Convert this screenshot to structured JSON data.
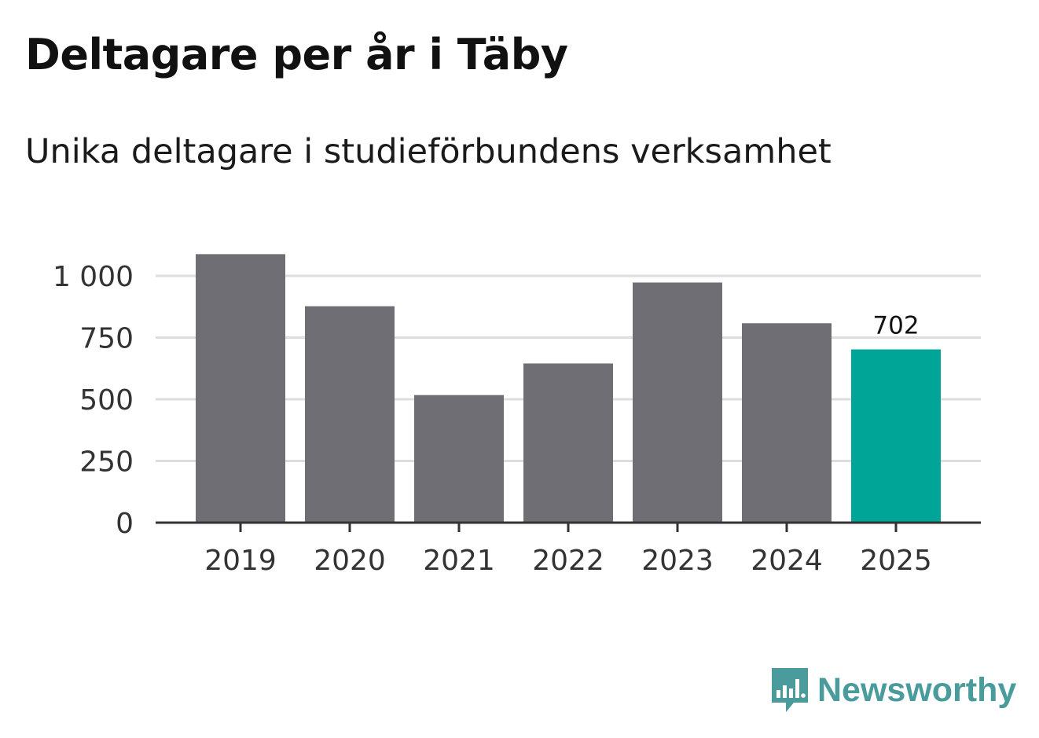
{
  "title": "Deltagare per år i Täby",
  "subtitle": "Unika deltagare i studieförbundens verksamhet",
  "brand": {
    "name": "Newsworthy",
    "icon": "newsworthy-logo-icon",
    "color": "#4a9b9b"
  },
  "chart_data": {
    "type": "bar",
    "categories": [
      "2019",
      "2020",
      "2021",
      "2022",
      "2023",
      "2024",
      "2025"
    ],
    "values": [
      1088,
      877,
      517,
      645,
      973,
      808,
      702
    ],
    "highlight_index": 6,
    "highlight_label": "702",
    "colors": {
      "bar": "#6f6e74",
      "highlight": "#00a598",
      "grid": "#dddddd",
      "axis": "#333333"
    },
    "ylim": [
      0,
      1000
    ],
    "yticks": [
      0,
      250,
      500,
      750,
      1000
    ],
    "ytick_labels": [
      "0",
      "250",
      "500",
      "750",
      "1 000"
    ],
    "grid": true,
    "xlabel": "",
    "ylabel": ""
  }
}
